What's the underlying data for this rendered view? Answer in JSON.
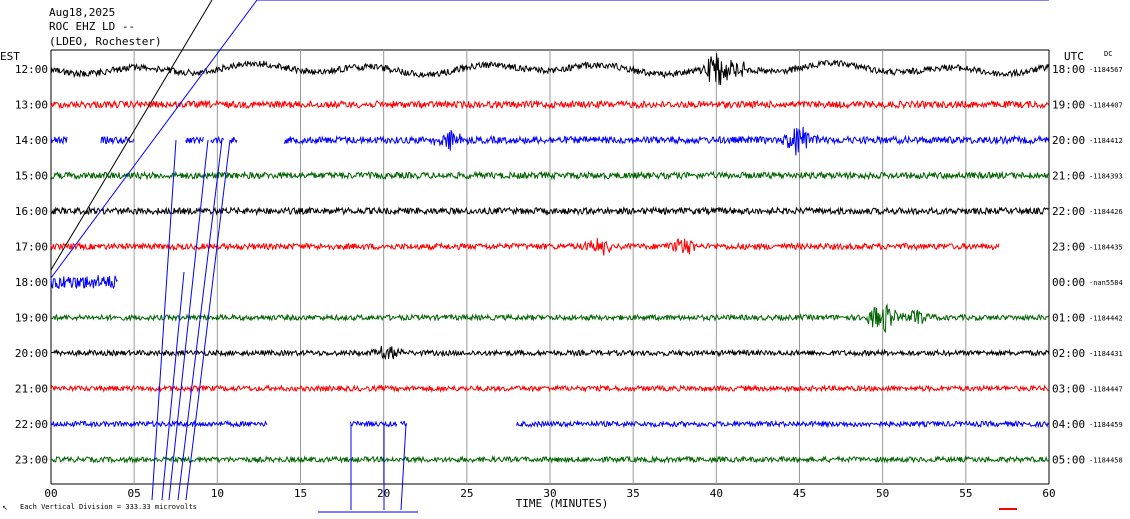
{
  "header": {
    "date": "Aug18,2025",
    "station": "ROC EHZ LD --",
    "network": "(LDEO, Rochester)"
  },
  "axes": {
    "left_zone": "EST",
    "right_zone": "UTC",
    "dc_label": "DC",
    "xlabel": "TIME (MINUTES)",
    "footer": "Each Vertical Division = 333.33 microvolts"
  },
  "chart_data": {
    "type": "line",
    "title": "",
    "xlabel": "TIME (MINUTES)",
    "xlim": [
      0,
      60
    ],
    "xticks": [
      "00",
      "05",
      "10",
      "15",
      "20",
      "25",
      "30",
      "35",
      "40",
      "45",
      "50",
      "55",
      "60"
    ],
    "grid": true,
    "rows": [
      {
        "est": "12:00",
        "utc": "18:00",
        "dc": "-1184567",
        "color": "#000000",
        "segments": [
          [
            0,
            60
          ]
        ],
        "noise": 3.2,
        "swell": 7
      },
      {
        "est": "13:00",
        "utc": "19:00",
        "dc": "-1184407",
        "color": "#ff0000",
        "segments": [
          [
            0,
            60
          ]
        ],
        "noise": 3.4,
        "swell": 1
      },
      {
        "est": "14:00",
        "utc": "20:00",
        "dc": "-1184412",
        "color": "#0000ff",
        "segments": [
          [
            0,
            1
          ],
          [
            3,
            5
          ],
          [
            8.1,
            9.2
          ],
          [
            9.6,
            10.4
          ],
          [
            10.8,
            11.2
          ],
          [
            14,
            60
          ]
        ],
        "noise": 3.5,
        "swell": 1
      },
      {
        "est": "15:00",
        "utc": "21:00",
        "dc": "-1184393",
        "color": "#006400",
        "segments": [
          [
            0,
            60
          ]
        ],
        "noise": 3.2,
        "swell": 1
      },
      {
        "est": "16:00",
        "utc": "22:00",
        "dc": "-1184426",
        "color": "#000000",
        "segments": [
          [
            0,
            60
          ]
        ],
        "noise": 3.2,
        "swell": 1
      },
      {
        "est": "17:00",
        "utc": "23:00",
        "dc": "-1184435",
        "color": "#ff0000",
        "segments": [
          [
            0,
            57
          ]
        ],
        "noise": 3.0,
        "swell": 1
      },
      {
        "est": "18:00",
        "utc": "00:00",
        "dc": "-nan5584",
        "color": "#0000ff",
        "segments": [
          [
            0,
            4
          ]
        ],
        "noise": 7.0,
        "swell": 1
      },
      {
        "est": "19:00",
        "utc": "01:00",
        "dc": "-1184442",
        "color": "#006400",
        "segments": [
          [
            0,
            60
          ]
        ],
        "noise": 2.6,
        "swell": 1
      },
      {
        "est": "20:00",
        "utc": "02:00",
        "dc": "-1184431",
        "color": "#000000",
        "segments": [
          [
            0,
            60
          ]
        ],
        "noise": 2.6,
        "swell": 1
      },
      {
        "est": "21:00",
        "utc": "03:00",
        "dc": "-1184447",
        "color": "#ff0000",
        "segments": [
          [
            0,
            60
          ]
        ],
        "noise": 2.6,
        "swell": 1
      },
      {
        "est": "22:00",
        "utc": "04:00",
        "dc": "-1184459",
        "color": "#0000ff",
        "segments": [
          [
            0,
            13
          ],
          [
            18,
            20.8
          ],
          [
            21,
            21.4
          ],
          [
            28,
            60
          ]
        ],
        "noise": 2.6,
        "swell": 1
      },
      {
        "est": "23:00",
        "utc": "05:00",
        "dc": "-1184458",
        "color": "#006400",
        "segments": [
          [
            0,
            60
          ]
        ],
        "noise": 2.6,
        "swell": 1
      }
    ],
    "events": [
      {
        "row": 0,
        "minute": 40,
        "amp": 30
      },
      {
        "row": 0,
        "minute": 41,
        "amp": 20
      },
      {
        "row": 2,
        "minute": 24,
        "amp": 22
      },
      {
        "row": 2,
        "minute": 45,
        "amp": 28
      },
      {
        "row": 5,
        "minute": 33,
        "amp": 14
      },
      {
        "row": 5,
        "minute": 38,
        "amp": 16
      },
      {
        "row": 7,
        "minute": 50,
        "amp": 28
      },
      {
        "row": 7,
        "minute": 52,
        "amp": 14
      },
      {
        "row": 8,
        "minute": 20.3,
        "amp": 12
      }
    ]
  }
}
